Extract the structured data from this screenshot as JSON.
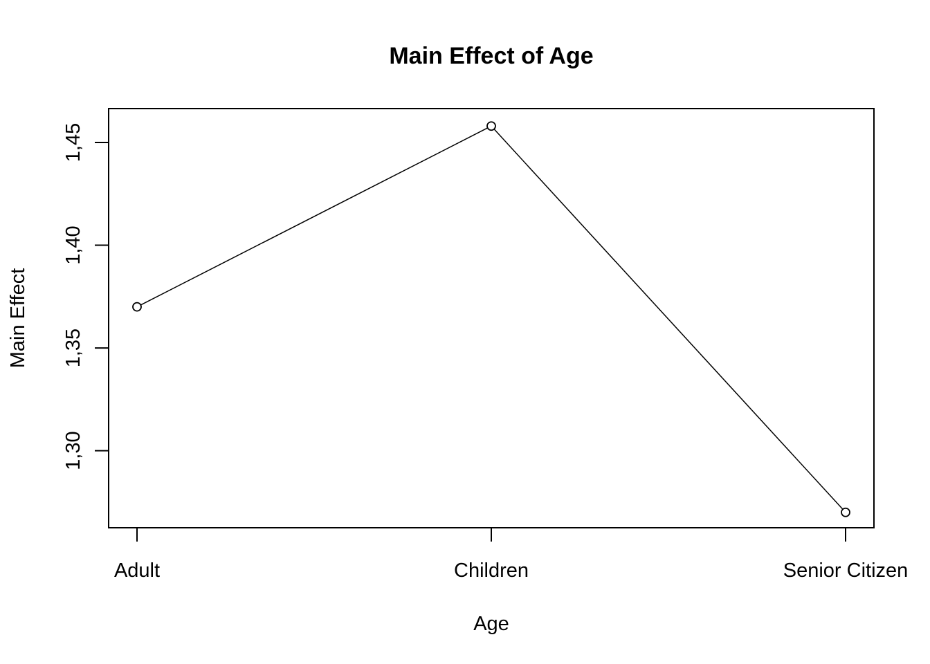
{
  "chart_data": {
    "type": "line",
    "title": "Main Effect of Age",
    "xlabel": "Age",
    "ylabel": "Main Effect",
    "categories": [
      "Adult",
      "Children",
      "Senior Citizen"
    ],
    "series": [
      {
        "values": [
          1.37,
          1.458,
          1.27
        ]
      }
    ],
    "ylim": [
      1.2625,
      1.4665
    ],
    "yticks": [
      {
        "value": 1.3,
        "label": "1,30"
      },
      {
        "value": 1.35,
        "label": "1,35"
      },
      {
        "value": 1.4,
        "label": "1,40"
      },
      {
        "value": 1.45,
        "label": "1,45"
      }
    ],
    "grid": false,
    "legend": "none",
    "markers": "open-circle",
    "color": "#000000"
  }
}
